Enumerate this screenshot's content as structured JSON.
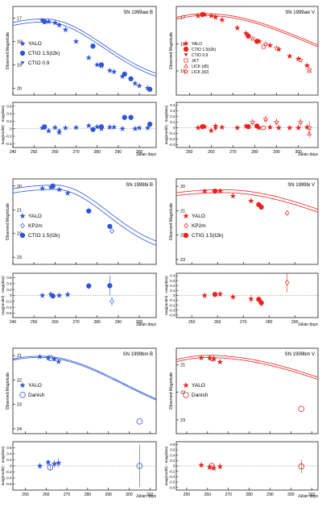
{
  "colors": {
    "blue": "#2f55d8",
    "red": "#e8231e",
    "axis": "#000000",
    "grid": "#777777"
  },
  "chart_data": [
    {
      "title": "SN 1999aw  B",
      "type": "scatter",
      "color": "blue",
      "ylabel": "Observed Magnitude",
      "resid_ylabel": "mag(model) - mag(data)",
      "xlabel": "Julian days",
      "xlim": [
        240,
        308
      ],
      "xticks": [
        240,
        250,
        260,
        270,
        280,
        290,
        300
      ],
      "ylim": [
        20.3,
        16.5
      ],
      "yticks": [
        17,
        18,
        19,
        20
      ],
      "rlim": [
        -0.5,
        0.7
      ],
      "rticks": [
        -0.4,
        -0.2,
        0,
        0.2,
        0.4,
        0.6
      ],
      "peak": 17.1,
      "tpeak": 255,
      "rise": 45,
      "decline": 28,
      "band": 0.13,
      "legend": [
        {
          "label": "YALO",
          "marker": "star"
        },
        {
          "label": "CTIO 1.5(t2k)",
          "marker": "circle"
        },
        {
          "label": "CTIO 0.9",
          "marker": "triangle"
        }
      ],
      "series": [
        {
          "marker": "star",
          "x": [
            254,
            257,
            260,
            262,
            265,
            270,
            276,
            280,
            282,
            286,
            288,
            292,
            298,
            300,
            304
          ],
          "y": [
            17.1,
            17.15,
            17.2,
            17.3,
            17.5,
            18.0,
            18.7,
            19.0,
            19.05,
            19.25,
            19.3,
            19.5,
            19.8,
            19.9,
            20.0
          ],
          "resid": [
            0.02,
            -0.06,
            0.03,
            -0.1,
            0.02,
            0.03,
            0.08,
            0.05,
            0.0,
            0.04,
            0.04,
            0.0,
            0.0,
            0.02,
            0.02
          ],
          "err": [
            0.03,
            0.04,
            0.03,
            0.05,
            0.03,
            0.03,
            0.03,
            0.03,
            0.03,
            0.04,
            0.03,
            0.03,
            0.04,
            0.03,
            0.03
          ]
        },
        {
          "marker": "circle",
          "x": [
            255,
            278,
            282,
            293,
            296,
            305
          ],
          "y": [
            17.15,
            18.2,
            19.0,
            19.4,
            19.6,
            20.05
          ],
          "resid": [
            0.05,
            -0.02,
            0.05,
            0.3,
            0.3,
            0.12
          ],
          "err": [
            0.02,
            0.02,
            0.02,
            0.02,
            0.02,
            0.02
          ]
        },
        {
          "marker": "triangle",
          "x": [
            262
          ],
          "y": [
            17.3
          ],
          "resid": [
            -0.06
          ],
          "err": [
            0.03
          ]
        }
      ]
    },
    {
      "title": "SN 1999aw  V",
      "type": "scatter",
      "color": "red",
      "ylabel": "Observed Magnitude",
      "resid_ylabel": "mag(model) - mag(data)",
      "xlabel": "Julian days",
      "xlim": [
        244,
        309
      ],
      "xticks": [
        250,
        260,
        270,
        280,
        290,
        300
      ],
      "ylim": [
        19.9,
        16.6
      ],
      "yticks": [
        17,
        18,
        19
      ],
      "rlim": [
        -0.35,
        0.45
      ],
      "rticks": [
        -0.3,
        -0.2,
        -0.1,
        0,
        0.1,
        0.2,
        0.3,
        0.4
      ],
      "peak": 16.9,
      "tpeak": 257,
      "rise": 40,
      "decline": 50,
      "band": 0.07,
      "legend": [
        {
          "label": "YALO",
          "marker": "star"
        },
        {
          "label": "CTIO 1.5(t2k)",
          "marker": "circle"
        },
        {
          "label": "CTIO 0.9",
          "marker": "triangle"
        },
        {
          "label": "JKT",
          "marker": "square-open"
        },
        {
          "label": "LICK (d5)",
          "marker": "triangle-open"
        },
        {
          "label": "LICK (d2)",
          "marker": "star-open"
        }
      ],
      "series": [
        {
          "marker": "star",
          "x": [
            254,
            257,
            260,
            262,
            265,
            272,
            276,
            282,
            287,
            291,
            296,
            300,
            304
          ],
          "y": [
            16.95,
            16.9,
            16.95,
            17.0,
            17.1,
            17.4,
            17.6,
            17.9,
            18.05,
            18.2,
            18.45,
            18.55,
            18.8
          ],
          "resid": [
            0.0,
            0.02,
            -0.05,
            0.03,
            0.01,
            0.0,
            0.03,
            0.0,
            0.01,
            0.0,
            0.0,
            0.0,
            0.01
          ],
          "err": [
            0.03,
            0.03,
            0.03,
            0.03,
            0.03,
            0.03,
            0.03,
            0.03,
            0.03,
            0.03,
            0.03,
            0.03,
            0.03
          ]
        },
        {
          "marker": "circle",
          "x": [
            256,
            277,
            281
          ],
          "y": [
            16.9,
            17.7,
            17.9
          ],
          "resid": [
            0.02,
            0.02,
            0.03
          ],
          "err": [
            0.02,
            0.02,
            0.02
          ]
        },
        {
          "marker": "triangle",
          "x": [
            262
          ],
          "y": [
            17.0
          ],
          "resid": [
            -0.02
          ],
          "err": [
            0.03
          ]
        },
        {
          "marker": "square-open",
          "x": [
            284
          ],
          "y": [
            18.1
          ],
          "resid": [
            0.0
          ],
          "err": [
            0.04
          ]
        },
        {
          "marker": "triangle-open",
          "x": [
            305
          ],
          "y": [
            19.0
          ],
          "resid": [
            -0.1
          ],
          "err": [
            0.08
          ]
        },
        {
          "marker": "star-open",
          "x": [
            279,
            285,
            290,
            301,
            305
          ],
          "y": [
            17.8,
            18.0,
            18.15,
            18.6,
            18.95
          ],
          "resid": [
            0.1,
            0.15,
            0.1,
            0.1,
            0.0
          ],
          "err": [
            0.06,
            0.07,
            0.06,
            0.06,
            0.12
          ]
        }
      ]
    },
    {
      "title": "SN 1999bi  B",
      "type": "scatter",
      "color": "blue",
      "ylabel": "Observed Magnitude",
      "resid_ylabel": "mag(model) - mag(data)",
      "xlabel": "Julian days",
      "xlim": [
        240,
        308
      ],
      "xticks": [
        240,
        250,
        260,
        270,
        280,
        290,
        300
      ],
      "ylim": [
        23.3,
        19.7
      ],
      "yticks": [
        20,
        21,
        22,
        23
      ],
      "rlim": [
        -0.75,
        0.75
      ],
      "rticks": [
        -0.6,
        -0.4,
        -0.2,
        0,
        0.2,
        0.4,
        0.6
      ],
      "peak": 20.05,
      "tpeak": 260,
      "rise": 60,
      "decline": 25,
      "band": 0.18,
      "legend": [
        {
          "label": "YALO",
          "marker": "star"
        },
        {
          "label": "KP2m",
          "marker": "diamond-open"
        },
        {
          "label": "CTIO 1.5(t2k)",
          "marker": "circle"
        }
      ],
      "series": [
        {
          "marker": "star",
          "x": [
            254,
            258,
            262,
            266
          ],
          "y": [
            20.1,
            20.05,
            20.15,
            20.3
          ],
          "resid": [
            0.0,
            0.04,
            0.0,
            0.03
          ],
          "err": [
            0.06,
            0.1,
            0.05,
            0.06
          ]
        },
        {
          "marker": "diamond-open",
          "x": [
            287
          ],
          "y": [
            21.9
          ],
          "resid": [
            -0.2
          ],
          "err": [
            0.15
          ]
        },
        {
          "marker": "circle",
          "x": [
            259,
            276,
            286
          ],
          "y": [
            20.0,
            21.05,
            21.7
          ],
          "resid": [
            -0.02,
            0.32,
            0.33
          ],
          "err": [
            0.05,
            0.1,
            0.35
          ]
        }
      ]
    },
    {
      "title": "SN 1999bi  V",
      "type": "scatter",
      "color": "red",
      "ylabel": "Observed Magnitude",
      "resid_ylabel": "mag(model) - mag(data)",
      "xlabel": "Julian days",
      "xlim": [
        244,
        299
      ],
      "xticks": [
        250,
        260,
        270,
        280,
        290
      ],
      "ylim": [
        23.2,
        19.7
      ],
      "yticks": [
        20,
        21,
        22,
        23
      ],
      "rlim": [
        -0.45,
        0.45
      ],
      "rticks": [
        -0.4,
        -0.3,
        -0.2,
        -0.1,
        0,
        0.1,
        0.2,
        0.3,
        0.4
      ],
      "peak": 20.2,
      "tpeak": 262,
      "rise": 60,
      "decline": 45,
      "band": 0.12,
      "legend": [
        {
          "label": "YALO",
          "marker": "star"
        },
        {
          "label": "KP2m",
          "marker": "diamond-open"
        },
        {
          "label": "CTIO 1.5(t2k)",
          "marker": "circle"
        }
      ],
      "series": [
        {
          "marker": "star",
          "x": [
            255,
            261,
            266,
            273
          ],
          "y": [
            20.2,
            20.2,
            20.4,
            20.6
          ],
          "resid": [
            0.0,
            0.03,
            -0.03,
            -0.07
          ],
          "err": [
            0.05,
            0.05,
            0.05,
            0.08
          ]
        },
        {
          "marker": "diamond-open",
          "x": [
            287
          ],
          "y": [
            21.1
          ],
          "resid": [
            0.26
          ],
          "err": [
            0.2
          ]
        },
        {
          "marker": "circle",
          "x": [
            259,
            276,
            277
          ],
          "y": [
            20.2,
            20.75,
            20.85
          ],
          "resid": [
            0.02,
            -0.08,
            -0.15
          ],
          "err": [
            0.04,
            0.06,
            0.08
          ]
        }
      ]
    },
    {
      "title": "SN 1999bm  B",
      "type": "scatter",
      "color": "blue",
      "ylabel": "Observed Magnitude",
      "resid_ylabel": "mag(model) - mag(data)",
      "xlabel": "Julian days",
      "xlim": [
        244,
        313
      ],
      "xticks": [
        250,
        260,
        270,
        280,
        290,
        300,
        310
      ],
      "ylim": [
        24.2,
        20.7
      ],
      "yticks": [
        21,
        22,
        23,
        24
      ],
      "rlim": [
        -0.8,
        0.8
      ],
      "rticks": [
        -0.6,
        -0.4,
        -0.2,
        0,
        0.2,
        0.4,
        0.6
      ],
      "peak": 21.05,
      "tpeak": 257,
      "rise": 45,
      "decline": 40,
      "band": 0.05,
      "legend": [
        {
          "label": "YALO",
          "marker": "star"
        },
        {
          "label": "Danish",
          "marker": "circle-open"
        }
      ],
      "series": [
        {
          "marker": "star",
          "x": [
            257,
            261,
            264,
            266
          ],
          "y": [
            21.05,
            21.1,
            21.15,
            21.25
          ],
          "resid": [
            0.0,
            0.12,
            0.07,
            0.1
          ],
          "err": [
            0.08,
            0.1,
            0.12,
            0.15
          ]
        },
        {
          "marker": "circle-open",
          "x": [
            262,
            305
          ],
          "y": [
            21.1,
            23.7
          ],
          "resid": [
            -0.05,
            0.0
          ],
          "err": [
            0.1,
            0.7
          ]
        }
      ]
    },
    {
      "title": "SN 1999bm  V",
      "type": "scatter",
      "color": "red",
      "ylabel": "Observed Magnitude",
      "resid_ylabel": "mag(model) - mag(data)",
      "xlabel": "Julian days",
      "xlim": [
        245,
        313
      ],
      "xticks": [
        250,
        260,
        270,
        280,
        290,
        300,
        310
      ],
      "ylim": [
        23.5,
        20.4
      ],
      "yticks": [
        21,
        22,
        23
      ],
      "rlim": [
        -0.9,
        0.9
      ],
      "rticks": [
        -0.8,
        -0.6,
        -0.4,
        -0.2,
        0,
        0.2,
        0.4,
        0.6,
        0.8
      ],
      "peak": 20.7,
      "tpeak": 260,
      "rise": 45,
      "decline": 65,
      "band": 0.08,
      "legend": [
        {
          "label": "YALO",
          "marker": "star"
        },
        {
          "label": "Danish",
          "marker": "circle-open"
        }
      ],
      "series": [
        {
          "marker": "star",
          "x": [
            257,
            261,
            263,
            266
          ],
          "y": [
            20.75,
            20.75,
            20.8,
            20.9
          ],
          "resid": [
            0.03,
            -0.05,
            -0.08,
            -0.02
          ],
          "err": [
            0.08,
            0.08,
            0.1,
            0.12
          ]
        },
        {
          "marker": "circle-open",
          "x": [
            262,
            305
          ],
          "y": [
            20.75,
            22.6
          ],
          "resid": [
            0.0,
            -0.02
          ],
          "err": [
            0.06,
            0.25
          ]
        }
      ]
    }
  ]
}
